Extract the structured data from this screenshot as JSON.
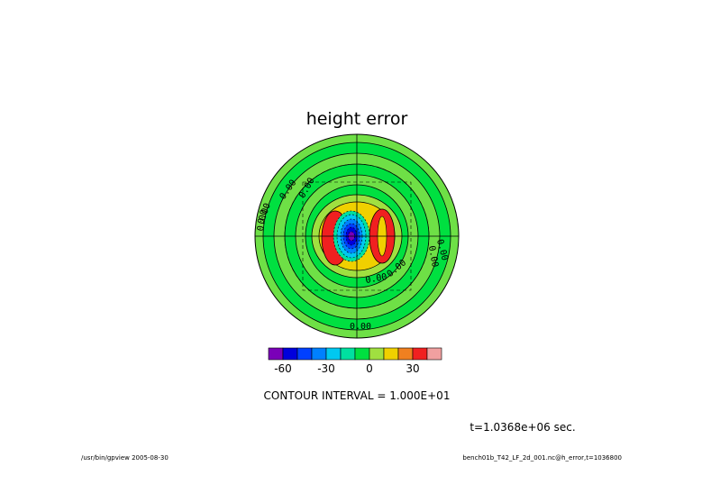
{
  "chart_data": {
    "type": "heatmap",
    "projection": "polar-stereographic disk",
    "title": "height error",
    "contour_interval_text": "CONTOUR INTERVAL = 1.000E+01",
    "contour_labels": [
      "0.00",
      "0.00",
      "0.00",
      "0.00",
      "0.00",
      "0.00",
      "0.00",
      "0.00",
      "0.00"
    ],
    "field_range": [
      -65,
      35
    ],
    "levels": [
      -60,
      -50,
      -40,
      -30,
      -20,
      -10,
      0,
      10,
      20,
      30
    ],
    "colorbar": {
      "colors": [
        "#7a00b8",
        "#0000dc",
        "#0040ff",
        "#0080ff",
        "#00c8f0",
        "#00e0a0",
        "#00e040",
        "#a0e040",
        "#f0d000",
        "#f08020",
        "#f02020",
        "#f0a0a0"
      ],
      "tick_labels": [
        "-60",
        "-30",
        "0",
        "30"
      ],
      "tick_values": [
        -60,
        -30,
        0,
        30
      ]
    },
    "background_value": 0,
    "center_anomaly": {
      "min": -65,
      "max": 35
    }
  },
  "time_label": "t=1.0368e+06 sec.",
  "footer": {
    "left": "/usr/bin/gpview  2005-08-30",
    "right": "bench01b_T42_LF_2d_001.nc@h_error,t=1036800"
  }
}
